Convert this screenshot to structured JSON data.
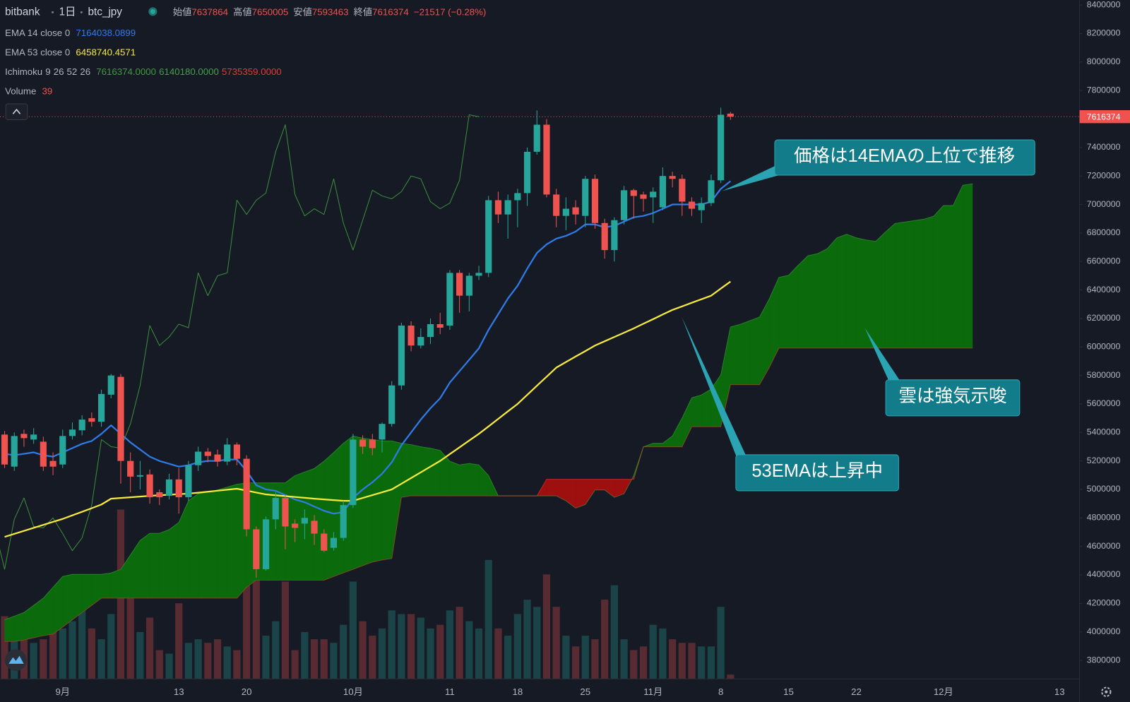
{
  "chart_data": {
    "type": "candlestick",
    "header": {
      "exchange": "bitbank",
      "interval": "1日",
      "symbol": "btc_jpy",
      "open_label": "始値",
      "high_label": "高値",
      "low_label": "安値",
      "close_label": "終値",
      "change": "−21517 (−0.28%)"
    },
    "categories": [
      null,
      null,
      null,
      null,
      null,
      null,
      "9月",
      null,
      null,
      null,
      null,
      null,
      null,
      null,
      null,
      null,
      null,
      null,
      "13",
      null,
      null,
      null,
      null,
      null,
      null,
      "20",
      null,
      null,
      null,
      null,
      null,
      null,
      null,
      null,
      null,
      null,
      "10月",
      null,
      null,
      null,
      null,
      null,
      null,
      null,
      null,
      null,
      "11",
      null,
      null,
      null,
      null,
      null,
      null,
      "18",
      null,
      null,
      null,
      null,
      null,
      null,
      "25",
      null,
      null,
      null,
      null,
      null,
      null,
      "11月",
      null,
      null,
      null,
      null,
      null,
      null,
      "8",
      null,
      null,
      null,
      null,
      null,
      null,
      "15",
      null,
      null,
      null,
      null,
      null,
      null,
      "22",
      null,
      null,
      null,
      null,
      null,
      null,
      null,
      null,
      "12月",
      null,
      null,
      null,
      null,
      null,
      null,
      null,
      null,
      null,
      null,
      null,
      "13"
    ],
    "open": [
      5385000,
      5160000,
      5390000,
      5350000,
      5335000,
      5200000,
      5175000,
      5375000,
      5415000,
      5500000,
      5475000,
      5665000,
      5790000,
      5200000,
      5090000,
      5105000,
      4980000,
      4955000,
      5070000,
      4945000,
      5170000,
      5265000,
      5245000,
      5195000,
      5315000,
      5215000,
      4720000,
      4440000,
      4790000,
      4940000,
      4760000,
      4760000,
      4780000,
      4690000,
      4590000,
      4660000,
      4890000,
      5350000,
      5350000,
      5350000,
      5460000,
      5730000,
      6150000,
      6010000,
      6070000,
      6160000,
      6150000,
      6520000,
      6360000,
      6500000,
      6520000,
      7030000,
      6930000,
      7030000,
      7080000,
      7370000,
      7560000,
      7070000,
      6920000,
      6980000,
      6920000,
      7180000,
      6870000,
      6680000,
      6890000,
      7100000,
      7070000,
      7050000,
      6980000,
      7200000,
      7180000,
      7020000,
      6960000,
      7010000,
      7170000,
      7637864,
      null,
      null,
      null,
      null,
      null,
      null,
      null,
      null,
      null,
      null,
      null,
      null,
      null,
      null,
      null,
      null,
      null,
      null,
      null,
      null,
      null,
      null,
      null,
      null,
      null,
      null,
      null,
      null,
      null,
      null,
      null,
      null,
      null,
      null
    ],
    "high": [
      5410000,
      5400000,
      5420000,
      5430000,
      5370000,
      5260000,
      5420000,
      5470000,
      5520000,
      5540000,
      5700000,
      5810000,
      5810000,
      5260000,
      5200000,
      5140000,
      5000000,
      5110000,
      5150000,
      5200000,
      5300000,
      5290000,
      5280000,
      5360000,
      5330000,
      5240000,
      4740000,
      4810000,
      4980000,
      4960000,
      4790000,
      4860000,
      4820000,
      4720000,
      4700000,
      4920000,
      5390000,
      5380000,
      5390000,
      5470000,
      5760000,
      6170000,
      6180000,
      6130000,
      6200000,
      6240000,
      6540000,
      6540000,
      6520000,
      6570000,
      7060000,
      7090000,
      7070000,
      7110000,
      7400000,
      7660000,
      7600000,
      7110000,
      7050000,
      7030000,
      7200000,
      7210000,
      6900000,
      6910000,
      7130000,
      7110000,
      7090000,
      7120000,
      7260000,
      7230000,
      7210000,
      7050000,
      7050000,
      7210000,
      7680000,
      7650005,
      null,
      null,
      null,
      null,
      null,
      null,
      null,
      null,
      null,
      null,
      null,
      null,
      null,
      null,
      null,
      null,
      null,
      null,
      null,
      null,
      null,
      null,
      null,
      null,
      null,
      null,
      null,
      null,
      null,
      null,
      null,
      null,
      null,
      null
    ],
    "low": [
      5150000,
      5130000,
      5300000,
      5320000,
      5130000,
      5100000,
      5150000,
      5350000,
      5380000,
      5440000,
      5440000,
      5640000,
      5040000,
      4980000,
      5000000,
      4900000,
      4890000,
      4930000,
      4830000,
      4920000,
      5130000,
      5190000,
      5160000,
      5170000,
      5170000,
      4670000,
      4380000,
      4430000,
      4720000,
      4580000,
      4630000,
      4650000,
      4610000,
      4560000,
      4570000,
      4640000,
      4870000,
      5250000,
      5240000,
      5260000,
      5440000,
      5700000,
      5970000,
      5990000,
      6020000,
      6090000,
      6120000,
      6240000,
      6250000,
      6470000,
      6490000,
      6870000,
      6760000,
      6840000,
      6990000,
      7350000,
      7050000,
      6840000,
      6820000,
      6860000,
      6840000,
      6830000,
      6620000,
      6600000,
      6860000,
      6900000,
      6950000,
      6870000,
      6960000,
      7120000,
      6920000,
      6920000,
      6870000,
      6990000,
      7150000,
      7593463,
      null,
      null,
      null,
      null,
      null,
      null,
      null,
      null,
      null,
      null,
      null,
      null,
      null,
      null,
      null,
      null,
      null,
      null,
      null,
      null,
      null,
      null,
      null,
      null,
      null,
      null,
      null,
      null,
      null,
      null,
      null,
      null,
      null,
      null
    ],
    "close": [
      5175000,
      5375000,
      5360000,
      5385000,
      5160000,
      5160000,
      5375000,
      5420000,
      5490000,
      5475000,
      5670000,
      5800000,
      5200000,
      5090000,
      5100000,
      4945000,
      4945000,
      5070000,
      4945000,
      5170000,
      5265000,
      5235000,
      5195000,
      5315000,
      5215000,
      4720000,
      4440000,
      4790000,
      4940000,
      4740000,
      4730000,
      4800000,
      4690000,
      4570000,
      4660000,
      4890000,
      5350000,
      5300000,
      5290000,
      5460000,
      5730000,
      6150000,
      6010000,
      6070000,
      6160000,
      6135000,
      6520000,
      6360000,
      6500000,
      6520000,
      7030000,
      6930000,
      7030000,
      7080000,
      7370000,
      7560000,
      7070000,
      6920000,
      6970000,
      6930000,
      7180000,
      6870000,
      6680000,
      6890000,
      7100000,
      7060000,
      7040000,
      7090000,
      7200000,
      7180000,
      7020000,
      6970000,
      7010000,
      7170000,
      7630000,
      7616374,
      null,
      null,
      null,
      null,
      null,
      null,
      null,
      null,
      null,
      null,
      null,
      null,
      null,
      null,
      null,
      null,
      null,
      null,
      null,
      null,
      null,
      null,
      null,
      null,
      null,
      null,
      null,
      null,
      null,
      null,
      null,
      null,
      null,
      null
    ],
    "up_color": "#26a69a",
    "down_color": "#ef5350",
    "series": [
      {
        "name": "EMA 14 close 0",
        "color": "#2f7be8",
        "values": [
          5250000,
          5240000,
          5250000,
          5260000,
          5240000,
          5230000,
          5260000,
          5290000,
          5320000,
          5340000,
          5390000,
          5450000,
          5390000,
          5330000,
          5280000,
          5230000,
          5200000,
          5180000,
          5160000,
          5170000,
          5190000,
          5200000,
          5200000,
          5210000,
          5210000,
          5130000,
          5030000,
          5000000,
          4990000,
          4960000,
          4930000,
          4910000,
          4880000,
          4850000,
          4830000,
          4840000,
          4940000,
          5000000,
          5050000,
          5110000,
          5190000,
          5310000,
          5400000,
          5490000,
          5570000,
          5640000,
          5750000,
          5830000,
          5910000,
          5990000,
          6120000,
          6230000,
          6340000,
          6430000,
          6550000,
          6660000,
          6720000,
          6760000,
          6780000,
          6810000,
          6860000,
          6860000,
          6840000,
          6850000,
          6880000,
          6910000,
          6920000,
          6940000,
          6970000,
          7000000,
          7000000,
          7000000,
          7000000,
          7020000,
          7110000,
          7164038.0899,
          null,
          null,
          null,
          null,
          null,
          null,
          null,
          null,
          null,
          null,
          null,
          null,
          null,
          null,
          null,
          null,
          null,
          null,
          null,
          null,
          null,
          null,
          null,
          null,
          null,
          null,
          null,
          null,
          null,
          null,
          null,
          null,
          null,
          null
        ]
      },
      {
        "name": "EMA 53 close 0",
        "color": "#f7ea3c",
        "values": [
          4667000,
          4688000,
          4709000,
          4730000,
          4751000,
          4772000,
          4793000,
          4818000,
          4843000,
          4868000,
          4894000,
          4935000,
          4940000,
          4945000,
          4950000,
          4955000,
          4959000,
          4963000,
          4967000,
          4970000,
          4977000,
          4984000,
          4991000,
          4998000,
          5005000,
          4992000,
          4978000,
          4965000,
          4959000,
          4953000,
          4947000,
          4941000,
          4935000,
          4930000,
          4925000,
          4920000,
          4920000,
          4940000,
          4960000,
          4980000,
          5000000,
          5040000,
          5080000,
          5120000,
          5160000,
          5200000,
          5248000,
          5295000,
          5343000,
          5390000,
          5442000,
          5495000,
          5548000,
          5600000,
          5664000,
          5728000,
          5791000,
          5855000,
          5894000,
          5933000,
          5971000,
          6010000,
          6040000,
          6070000,
          6100000,
          6130000,
          6163000,
          6195000,
          6228000,
          6260000,
          6285000,
          6310000,
          6335000,
          6360000,
          6410000,
          6458740.4571,
          null,
          null,
          null,
          null,
          null,
          null,
          null,
          null,
          null,
          null,
          null,
          null,
          null,
          null,
          null,
          null,
          null,
          null,
          null,
          null,
          null,
          null,
          null,
          null,
          null,
          null,
          null,
          null,
          null,
          null,
          null,
          null,
          null,
          null
        ]
      }
    ],
    "ichimoku": {
      "name": "Ichimoku",
      "params": [
        9,
        26,
        52,
        26
      ],
      "value_labels": [
        "7616374.0000",
        "6140180.0000",
        "5735359.0000"
      ],
      "lagging_color": "#3f9a3f",
      "span_a_color": "#43a047",
      "span_b_color": "#e53935",
      "bull_color": "#0b6a0b",
      "bear_color": "#9e0f0f",
      "span_a": [
        4085000,
        4110000,
        4136000,
        4186000,
        4237000,
        4313000,
        4389000,
        4404000,
        4404000,
        4404000,
        4404000,
        4414000,
        4439000,
        4540000,
        4642000,
        4692000,
        4692000,
        4718000,
        4768000,
        4920000,
        4970000,
        4980000,
        4996000,
        5016000,
        5036000,
        5046000,
        5046000,
        5046000,
        5046000,
        5046000,
        5097000,
        5122000,
        5147000,
        5198000,
        5259000,
        5324000,
        5375000,
        5360000,
        5350000,
        5340000,
        5340000,
        5324000,
        5314000,
        5299000,
        5289000,
        5274000,
        5198000,
        5172000,
        5182000,
        5172000,
        5097000,
        4955000,
        4955000,
        4955000,
        4955000,
        4955000,
        4955000,
        4955000,
        4920000,
        4869000,
        4894000,
        4996000,
        4996000,
        4945000,
        4970000,
        5097000,
        5299000,
        5324000,
        5324000,
        5375000,
        5501000,
        5643000,
        5663000,
        5704000,
        5805000,
        6140180,
        6159000,
        6184000,
        6210000,
        6336000,
        6488000,
        6503000,
        6574000,
        6640000,
        6655000,
        6690000,
        6766000,
        6791000,
        6766000,
        6751000,
        6741000,
        6806000,
        6867000,
        6877000,
        6887000,
        6897000,
        6918000,
        6993000,
        6993000,
        7135000,
        7145000,
        null,
        null,
        null,
        null,
        null,
        null,
        null,
        null,
        null
      ],
      "span_b": [
        3933000,
        3933000,
        3943000,
        3959000,
        3974000,
        3984000,
        4034000,
        4085000,
        4136000,
        4186000,
        4237000,
        4237000,
        4237000,
        4237000,
        4237000,
        4237000,
        4237000,
        4237000,
        4237000,
        4237000,
        4237000,
        4237000,
        4237000,
        4237000,
        4237000,
        4313000,
        4363000,
        4363000,
        4363000,
        4363000,
        4363000,
        4363000,
        4363000,
        4363000,
        4389000,
        4414000,
        4439000,
        4465000,
        4490000,
        4505000,
        4515000,
        4945000,
        4955000,
        4955000,
        4955000,
        4955000,
        4955000,
        4955000,
        4955000,
        4955000,
        4955000,
        4955000,
        4955000,
        4955000,
        4955000,
        4955000,
        5071000,
        5071000,
        5071000,
        5071000,
        5071000,
        5071000,
        5071000,
        5071000,
        5071000,
        5071000,
        5299000,
        5299000,
        5299000,
        5299000,
        5299000,
        5440000,
        5440000,
        5440000,
        5440000,
        5735359,
        5735359,
        5735359,
        5735359,
        5855000,
        5992000,
        5992000,
        5992000,
        5992000,
        5992000,
        5992000,
        5992000,
        5992000,
        5992000,
        5992000,
        5992000,
        5992000,
        5992000,
        5992000,
        5992000,
        5992000,
        5992000,
        5992000,
        5992000,
        5992000,
        5992000,
        null,
        null,
        null,
        null,
        null,
        null,
        null,
        null,
        null
      ]
    },
    "volume": {
      "name": "Volume",
      "values": [
        566,
        553,
        455,
        325,
        358,
        423,
        455,
        520,
        650,
        455,
        358,
        585,
        1528,
        943,
        423,
        553,
        260,
        228,
        683,
        325,
        358,
        325,
        358,
        293,
        260,
        1528,
        943,
        390,
        520,
        878,
        260,
        423,
        358,
        358,
        325,
        488,
        878,
        520,
        390,
        455,
        618,
        585,
        585,
        553,
        455,
        488,
        618,
        650,
        520,
        455,
        1073,
        455,
        390,
        585,
        715,
        650,
        943,
        650,
        390,
        293,
        390,
        358,
        715,
        845,
        358,
        260,
        293,
        488,
        455,
        358,
        325,
        325,
        293,
        293,
        650,
        39,
        null,
        null,
        null,
        null,
        null,
        null,
        null,
        null,
        null,
        null,
        null,
        null,
        null,
        null,
        null,
        null,
        null,
        null,
        null,
        null,
        null,
        null,
        null,
        null,
        null,
        null,
        null,
        null,
        null,
        null,
        null,
        null,
        null,
        null
      ]
    },
    "ylim": [
      3670000,
      8435000
    ],
    "yticks": [
      3800000,
      4000000,
      4200000,
      4400000,
      4600000,
      4800000,
      5000000,
      5200000,
      5400000,
      5600000,
      5800000,
      6000000,
      6200000,
      6400000,
      6600000,
      6800000,
      7000000,
      7200000,
      7400000,
      7600000,
      7800000,
      8000000,
      8200000,
      8400000
    ],
    "grid": false,
    "annotations": [
      "価格は14EMAの上位で推移",
      "雲は強気示唆",
      "53EMAは上昇中"
    ]
  }
}
